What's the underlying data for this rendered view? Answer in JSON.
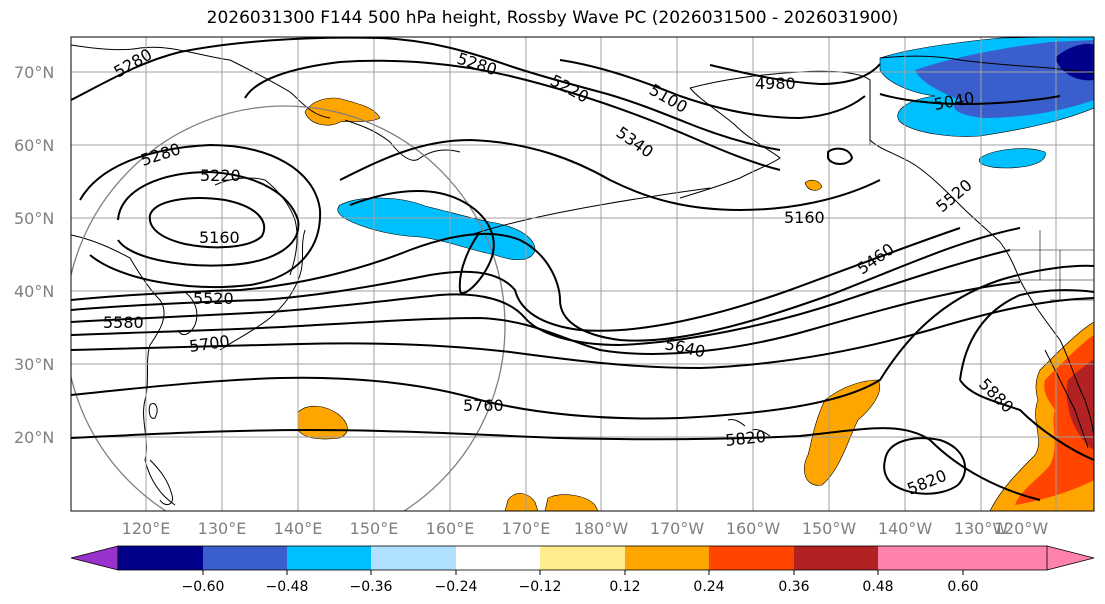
{
  "title": "2026031300 F144 500 hPa height, Rossby Wave PC (2026031500 - 2026031900)",
  "lat_labels": [
    "70°N",
    "60°N",
    "50°N",
    "40°N",
    "30°N",
    "20°N"
  ],
  "lon_labels": [
    "120°E",
    "130°E",
    "140°E",
    "150°E",
    "160°E",
    "170°E",
    "180°W",
    "170°W",
    "160°W",
    "150°W",
    "140°W",
    "130°W",
    "120°W"
  ],
  "contour_labels": [
    "5280",
    "5280",
    "5220",
    "5100",
    "4980",
    "5040",
    "5340",
    "5280",
    "5220",
    "5160",
    "5160",
    "5520",
    "5580",
    "5700",
    "5640",
    "5460",
    "5520",
    "5760",
    "5820",
    "5880",
    "5820"
  ],
  "colorbar": {
    "ticks": [
      "−0.60",
      "−0.48",
      "−0.36",
      "−0.24",
      "−0.12",
      "0.12",
      "0.24",
      "0.36",
      "0.48",
      "0.60"
    ],
    "colors": [
      "#9932cc",
      "#00008b",
      "#3a5fcd",
      "#00bfff",
      "#b0e2ff",
      "#ffffff",
      "#ffec8b",
      "#ffa500",
      "#ff4500",
      "#b22222",
      "#ff82ab"
    ]
  },
  "colors": {
    "land_outline": "#000000",
    "grid": "#a0a0a0",
    "circle": "#808080",
    "positive_light": "#ffa500",
    "positive_strong": "#ff4500",
    "positive_max": "#b22222",
    "negative_light": "#00bfff",
    "negative_mid": "#3a5fcd",
    "negative_strong": "#00008b"
  }
}
